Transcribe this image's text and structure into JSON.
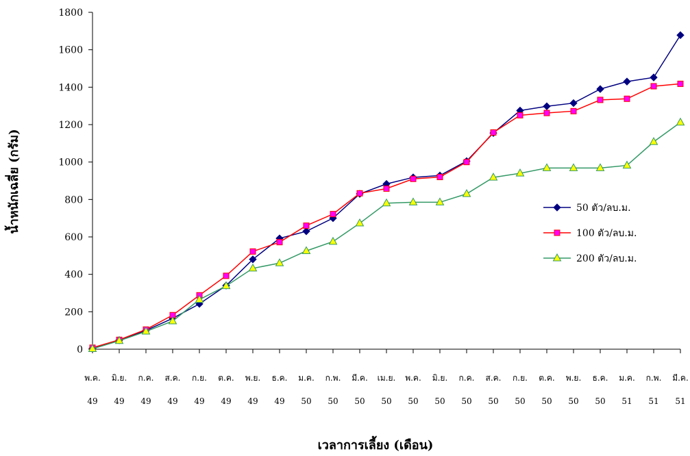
{
  "chart_data": {
    "type": "line",
    "xlabel": "เวลาการเลี้ยง (เดือน)",
    "ylabel": "น้ำหนักเฉลี่ย (กรัม)",
    "ylim": [
      0,
      1800
    ],
    "yticks": [
      0,
      200,
      400,
      600,
      800,
      1000,
      1200,
      1400,
      1600,
      1800
    ],
    "grid": false,
    "legend_position": "right",
    "categories": [
      {
        "month": "พ.ค.",
        "year": "49"
      },
      {
        "month": "มิ.ย.",
        "year": "49"
      },
      {
        "month": "ก.ค.",
        "year": "49"
      },
      {
        "month": "ส.ค.",
        "year": "49"
      },
      {
        "month": "ก.ย.",
        "year": "49"
      },
      {
        "month": "ต.ค.",
        "year": "49"
      },
      {
        "month": "พ.ย.",
        "year": "49"
      },
      {
        "month": "ธ.ค.",
        "year": "49"
      },
      {
        "month": "ม.ค.",
        "year": "50"
      },
      {
        "month": "ก.พ.",
        "year": "50"
      },
      {
        "month": "มี.ค.",
        "year": "50"
      },
      {
        "month": "เม.ย.",
        "year": "50"
      },
      {
        "month": "พ.ค.",
        "year": "50"
      },
      {
        "month": "มิ.ย.",
        "year": "50"
      },
      {
        "month": "ก.ค.",
        "year": "50"
      },
      {
        "month": "ส.ค.",
        "year": "50"
      },
      {
        "month": "ก.ย.",
        "year": "50"
      },
      {
        "month": "ต.ค.",
        "year": "50"
      },
      {
        "month": "พ.ย.",
        "year": "50"
      },
      {
        "month": "ธ.ค.",
        "year": "50"
      },
      {
        "month": "ม.ค.",
        "year": "51"
      },
      {
        "month": "ก.พ.",
        "year": "51"
      },
      {
        "month": "มี.ค.",
        "year": "51"
      }
    ],
    "series": [
      {
        "name": "50 ตัว/ลบ.ม.",
        "color": "#000080",
        "marker": "diamond",
        "values": [
          5,
          48,
          100,
          165,
          242,
          340,
          480,
          592,
          630,
          700,
          830,
          883,
          918,
          928,
          1005,
          1155,
          1275,
          1298,
          1315,
          1390,
          1430,
          1452,
          1678
        ]
      },
      {
        "name": "100 ตัว/ลบ.ม.",
        "color": "#ff0000",
        "marker": "square",
        "values": [
          8,
          50,
          105,
          182,
          288,
          392,
          522,
          572,
          660,
          722,
          833,
          858,
          910,
          920,
          1000,
          1158,
          1250,
          1262,
          1272,
          1332,
          1338,
          1405,
          1418
        ]
      },
      {
        "name": "200 ตัว/ลบ.ม.",
        "color": "#339966",
        "marker": "triangle",
        "markerFill": "#ffff00",
        "values": [
          2,
          45,
          95,
          150,
          265,
          338,
          432,
          460,
          525,
          575,
          673,
          780,
          785,
          785,
          830,
          918,
          940,
          968,
          968,
          968,
          982,
          1108,
          1212
        ]
      }
    ]
  }
}
